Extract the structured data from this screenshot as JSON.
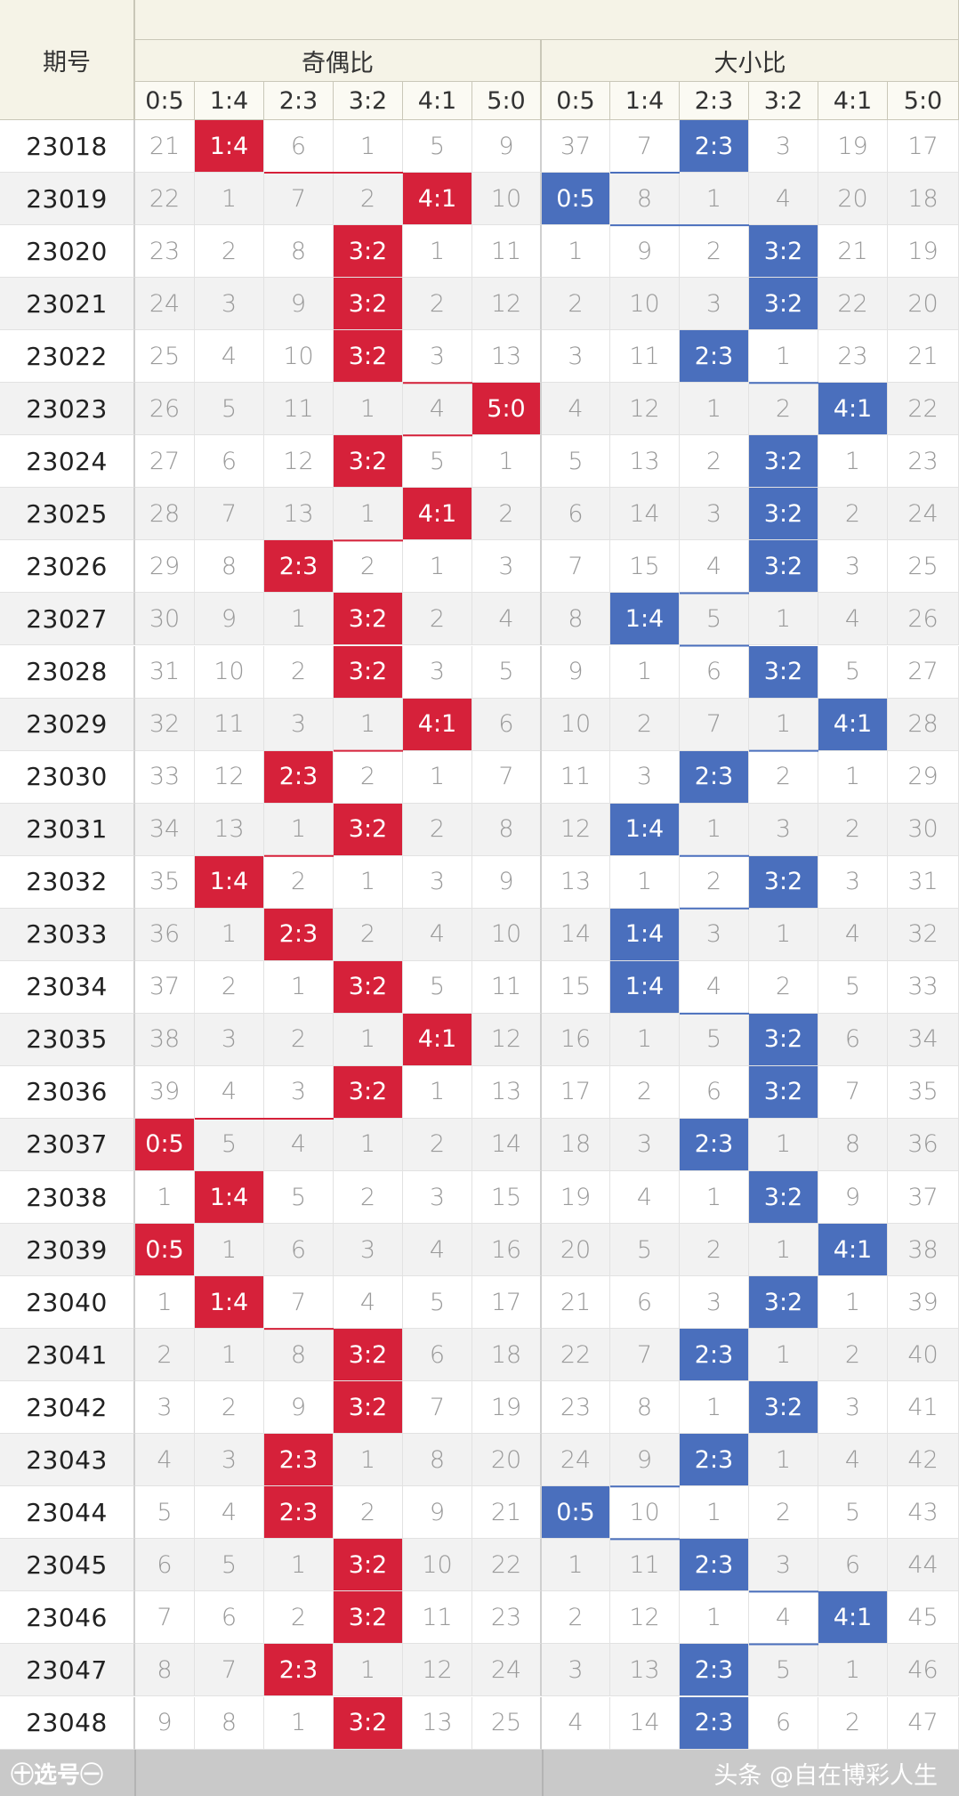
{
  "header": {
    "issue_label": "期号",
    "group1_label": "奇偶比",
    "group2_label": "大小比",
    "ratio_columns": [
      "0:5",
      "1:4",
      "2:3",
      "3:2",
      "4:1",
      "5:0"
    ]
  },
  "colors": {
    "odd_even_hit": "#d6213a",
    "big_small_hit": "#4a6fbd"
  },
  "rows": [
    {
      "issue": "23018",
      "odd_even": [
        "21",
        "1:4",
        "6",
        "1",
        "5",
        "9"
      ],
      "big_small": [
        "37",
        "7",
        "2:3",
        "3",
        "19",
        "17"
      ],
      "oe_hit": 1,
      "bs_hit": 2
    },
    {
      "issue": "23019",
      "odd_even": [
        "22",
        "1",
        "7",
        "2",
        "4:1",
        "10"
      ],
      "big_small": [
        "0:5",
        "8",
        "1",
        "4",
        "20",
        "18"
      ],
      "oe_hit": 4,
      "bs_hit": 0
    },
    {
      "issue": "23020",
      "odd_even": [
        "23",
        "2",
        "8",
        "3:2",
        "1",
        "11"
      ],
      "big_small": [
        "1",
        "9",
        "2",
        "3:2",
        "21",
        "19"
      ],
      "oe_hit": 3,
      "bs_hit": 3
    },
    {
      "issue": "23021",
      "odd_even": [
        "24",
        "3",
        "9",
        "3:2",
        "2",
        "12"
      ],
      "big_small": [
        "2",
        "10",
        "3",
        "3:2",
        "22",
        "20"
      ],
      "oe_hit": 3,
      "bs_hit": 3
    },
    {
      "issue": "23022",
      "odd_even": [
        "25",
        "4",
        "10",
        "3:2",
        "3",
        "13"
      ],
      "big_small": [
        "3",
        "11",
        "2:3",
        "1",
        "23",
        "21"
      ],
      "oe_hit": 3,
      "bs_hit": 2
    },
    {
      "issue": "23023",
      "odd_even": [
        "26",
        "5",
        "11",
        "1",
        "4",
        "5:0"
      ],
      "big_small": [
        "4",
        "12",
        "1",
        "2",
        "4:1",
        "22"
      ],
      "oe_hit": 5,
      "bs_hit": 4
    },
    {
      "issue": "23024",
      "odd_even": [
        "27",
        "6",
        "12",
        "3:2",
        "5",
        "1"
      ],
      "big_small": [
        "5",
        "13",
        "2",
        "3:2",
        "1",
        "23"
      ],
      "oe_hit": 3,
      "bs_hit": 3
    },
    {
      "issue": "23025",
      "odd_even": [
        "28",
        "7",
        "13",
        "1",
        "4:1",
        "2"
      ],
      "big_small": [
        "6",
        "14",
        "3",
        "3:2",
        "2",
        "24"
      ],
      "oe_hit": 4,
      "bs_hit": 3
    },
    {
      "issue": "23026",
      "odd_even": [
        "29",
        "8",
        "2:3",
        "2",
        "1",
        "3"
      ],
      "big_small": [
        "7",
        "15",
        "4",
        "3:2",
        "3",
        "25"
      ],
      "oe_hit": 2,
      "bs_hit": 3
    },
    {
      "issue": "23027",
      "odd_even": [
        "30",
        "9",
        "1",
        "3:2",
        "2",
        "4"
      ],
      "big_small": [
        "8",
        "1:4",
        "5",
        "1",
        "4",
        "26"
      ],
      "oe_hit": 3,
      "bs_hit": 1
    },
    {
      "issue": "23028",
      "odd_even": [
        "31",
        "10",
        "2",
        "3:2",
        "3",
        "5"
      ],
      "big_small": [
        "9",
        "1",
        "6",
        "3:2",
        "5",
        "27"
      ],
      "oe_hit": 3,
      "bs_hit": 3
    },
    {
      "issue": "23029",
      "odd_even": [
        "32",
        "11",
        "3",
        "1",
        "4:1",
        "6"
      ],
      "big_small": [
        "10",
        "2",
        "7",
        "1",
        "4:1",
        "28"
      ],
      "oe_hit": 4,
      "bs_hit": 4
    },
    {
      "issue": "23030",
      "odd_even": [
        "33",
        "12",
        "2:3",
        "2",
        "1",
        "7"
      ],
      "big_small": [
        "11",
        "3",
        "2:3",
        "2",
        "1",
        "29"
      ],
      "oe_hit": 2,
      "bs_hit": 2
    },
    {
      "issue": "23031",
      "odd_even": [
        "34",
        "13",
        "1",
        "3:2",
        "2",
        "8"
      ],
      "big_small": [
        "12",
        "1:4",
        "1",
        "3",
        "2",
        "30"
      ],
      "oe_hit": 3,
      "bs_hit": 1
    },
    {
      "issue": "23032",
      "odd_even": [
        "35",
        "1:4",
        "2",
        "1",
        "3",
        "9"
      ],
      "big_small": [
        "13",
        "1",
        "2",
        "3:2",
        "3",
        "31"
      ],
      "oe_hit": 1,
      "bs_hit": 3
    },
    {
      "issue": "23033",
      "odd_even": [
        "36",
        "1",
        "2:3",
        "2",
        "4",
        "10"
      ],
      "big_small": [
        "14",
        "1:4",
        "3",
        "1",
        "4",
        "32"
      ],
      "oe_hit": 2,
      "bs_hit": 1
    },
    {
      "issue": "23034",
      "odd_even": [
        "37",
        "2",
        "1",
        "3:2",
        "5",
        "11"
      ],
      "big_small": [
        "15",
        "1:4",
        "4",
        "2",
        "5",
        "33"
      ],
      "oe_hit": 3,
      "bs_hit": 1
    },
    {
      "issue": "23035",
      "odd_even": [
        "38",
        "3",
        "2",
        "1",
        "4:1",
        "12"
      ],
      "big_small": [
        "16",
        "1",
        "5",
        "3:2",
        "6",
        "34"
      ],
      "oe_hit": 4,
      "bs_hit": 3
    },
    {
      "issue": "23036",
      "odd_even": [
        "39",
        "4",
        "3",
        "3:2",
        "1",
        "13"
      ],
      "big_small": [
        "17",
        "2",
        "6",
        "3:2",
        "7",
        "35"
      ],
      "oe_hit": 3,
      "bs_hit": 3
    },
    {
      "issue": "23037",
      "odd_even": [
        "0:5",
        "5",
        "4",
        "1",
        "2",
        "14"
      ],
      "big_small": [
        "18",
        "3",
        "2:3",
        "1",
        "8",
        "36"
      ],
      "oe_hit": 0,
      "bs_hit": 2
    },
    {
      "issue": "23038",
      "odd_even": [
        "1",
        "1:4",
        "5",
        "2",
        "3",
        "15"
      ],
      "big_small": [
        "19",
        "4",
        "1",
        "3:2",
        "9",
        "37"
      ],
      "oe_hit": 1,
      "bs_hit": 3
    },
    {
      "issue": "23039",
      "odd_even": [
        "0:5",
        "1",
        "6",
        "3",
        "4",
        "16"
      ],
      "big_small": [
        "20",
        "5",
        "2",
        "1",
        "4:1",
        "38"
      ],
      "oe_hit": 0,
      "bs_hit": 4
    },
    {
      "issue": "23040",
      "odd_even": [
        "1",
        "1:4",
        "7",
        "4",
        "5",
        "17"
      ],
      "big_small": [
        "21",
        "6",
        "3",
        "3:2",
        "1",
        "39"
      ],
      "oe_hit": 1,
      "bs_hit": 3
    },
    {
      "issue": "23041",
      "odd_even": [
        "2",
        "1",
        "8",
        "3:2",
        "6",
        "18"
      ],
      "big_small": [
        "22",
        "7",
        "2:3",
        "1",
        "2",
        "40"
      ],
      "oe_hit": 3,
      "bs_hit": 2
    },
    {
      "issue": "23042",
      "odd_even": [
        "3",
        "2",
        "9",
        "3:2",
        "7",
        "19"
      ],
      "big_small": [
        "23",
        "8",
        "1",
        "3:2",
        "3",
        "41"
      ],
      "oe_hit": 3,
      "bs_hit": 3
    },
    {
      "issue": "23043",
      "odd_even": [
        "4",
        "3",
        "2:3",
        "1",
        "8",
        "20"
      ],
      "big_small": [
        "24",
        "9",
        "2:3",
        "1",
        "4",
        "42"
      ],
      "oe_hit": 2,
      "bs_hit": 2
    },
    {
      "issue": "23044",
      "odd_even": [
        "5",
        "4",
        "2:3",
        "2",
        "9",
        "21"
      ],
      "big_small": [
        "0:5",
        "10",
        "1",
        "2",
        "5",
        "43"
      ],
      "oe_hit": 2,
      "bs_hit": 0
    },
    {
      "issue": "23045",
      "odd_even": [
        "6",
        "5",
        "1",
        "3:2",
        "10",
        "22"
      ],
      "big_small": [
        "1",
        "11",
        "2:3",
        "3",
        "6",
        "44"
      ],
      "oe_hit": 3,
      "bs_hit": 2
    },
    {
      "issue": "23046",
      "odd_even": [
        "7",
        "6",
        "2",
        "3:2",
        "11",
        "23"
      ],
      "big_small": [
        "2",
        "12",
        "1",
        "4",
        "4:1",
        "45"
      ],
      "oe_hit": 3,
      "bs_hit": 4
    },
    {
      "issue": "23047",
      "odd_even": [
        "8",
        "7",
        "2:3",
        "1",
        "12",
        "24"
      ],
      "big_small": [
        "3",
        "13",
        "2:3",
        "5",
        "1",
        "46"
      ],
      "oe_hit": 2,
      "bs_hit": 2
    },
    {
      "issue": "23048",
      "odd_even": [
        "9",
        "8",
        "1",
        "3:2",
        "13",
        "25"
      ],
      "big_small": [
        "4",
        "14",
        "2:3",
        "6",
        "2",
        "47"
      ],
      "oe_hit": 3,
      "bs_hit": 2
    }
  ],
  "footer": {
    "select_button": "㊉选号㊀",
    "credit": "头条 @自在博彩人生"
  }
}
